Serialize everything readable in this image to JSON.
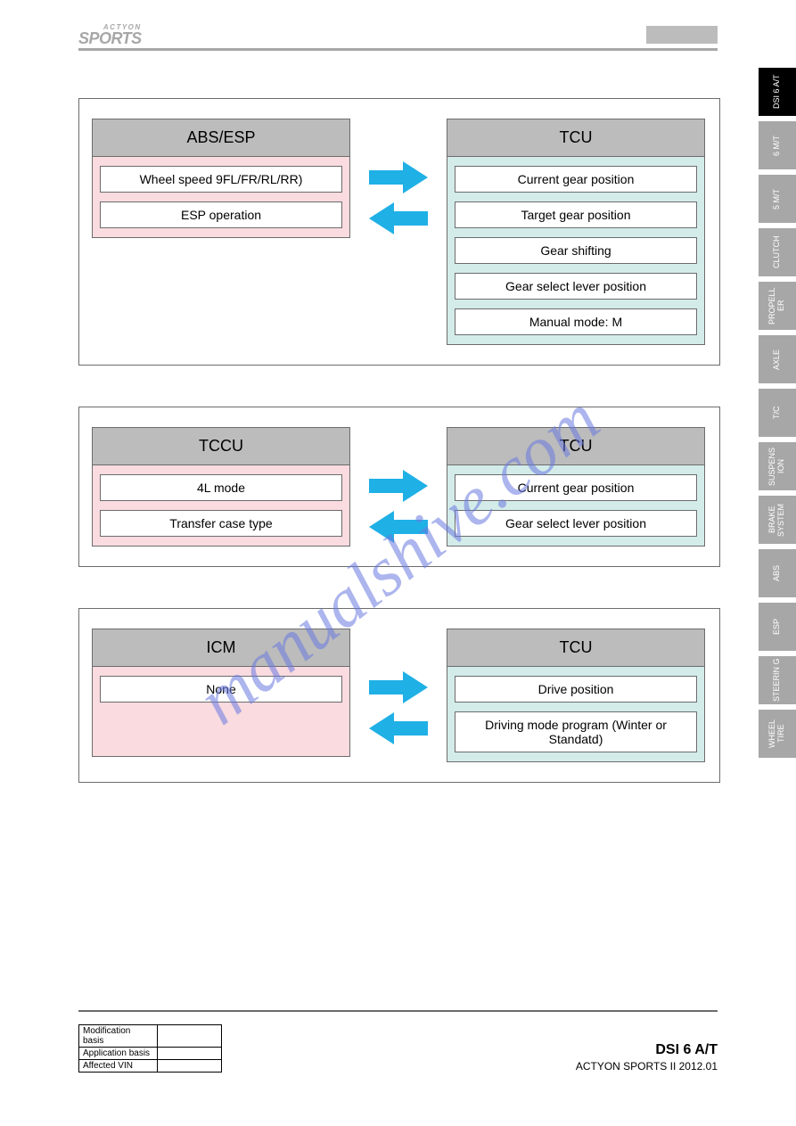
{
  "header": {
    "logo_top": "ACTYON",
    "logo_main": "SPORTS"
  },
  "sidebar": [
    {
      "label": "DSI 6 A/T",
      "active": true
    },
    {
      "label": "6 M/T",
      "active": false
    },
    {
      "label": "5 M/T",
      "active": false
    },
    {
      "label": "CLUTCH",
      "active": false
    },
    {
      "label": "PROPELL ER",
      "active": false
    },
    {
      "label": "AXLE",
      "active": false
    },
    {
      "label": "T/C",
      "active": false
    },
    {
      "label": "SUSPENS ION",
      "active": false
    },
    {
      "label": "BRAKE SYSTEM",
      "active": false
    },
    {
      "label": "ABS",
      "active": false
    },
    {
      "label": "ESP",
      "active": false
    },
    {
      "label": "STEERIN G",
      "active": false
    },
    {
      "label": "WHEEL TIRE",
      "active": false
    }
  ],
  "panels": [
    {
      "left": {
        "title": "ABS/ESP",
        "bg": "#f9dbe0",
        "items": [
          "Wheel speed 9FL/FR/RL/RR)",
          "ESP operation"
        ]
      },
      "right": {
        "title": "TCU",
        "bg": "#d3ecea",
        "items": [
          "Current gear position",
          "Target gear position",
          "Gear shifting",
          "Gear select lever position",
          "Manual mode: M"
        ]
      }
    },
    {
      "left": {
        "title": "TCCU",
        "bg": "#f9dbe0",
        "items": [
          "4L mode",
          "Transfer case type"
        ]
      },
      "right": {
        "title": "TCU",
        "bg": "#d3ecea",
        "items": [
          "Current gear position",
          "Gear select lever position"
        ]
      }
    },
    {
      "left": {
        "title": "ICM",
        "bg": "#f9dbe0",
        "items": [
          "None"
        ]
      },
      "right": {
        "title": "TCU",
        "bg": "#d3ecea",
        "items": [
          "Drive position",
          "Driving mode program (Winter or Standatd)"
        ]
      }
    }
  ],
  "style": {
    "arrow_color": "#1fb0e6",
    "module_border": "#6c6c6c",
    "title_bg": "#bcbcbc"
  },
  "footer": {
    "rows": [
      {
        "label": "Modification basis",
        "value": ""
      },
      {
        "label": "Application basis",
        "value": ""
      },
      {
        "label": "Affected VIN",
        "value": ""
      }
    ],
    "title": "DSI 6 A/T",
    "subtitle": "ACTYON SPORTS II 2012.01"
  },
  "watermark": "manualshive.com"
}
